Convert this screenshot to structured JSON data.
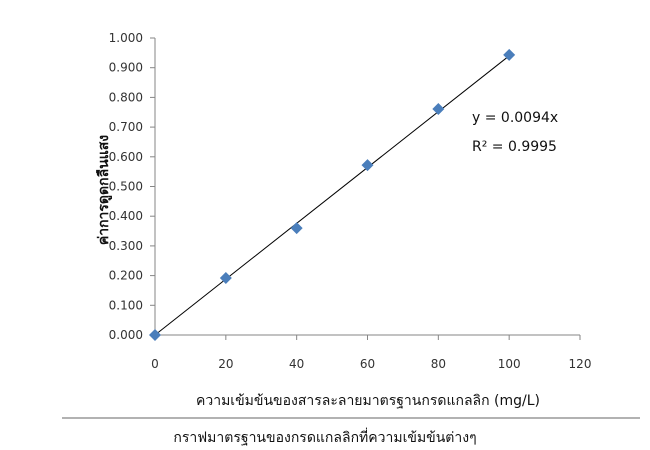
{
  "chart_data": {
    "type": "scatter",
    "title": "",
    "xlabel": "ความเข้มข้นของสารละลายมาตรฐานกรดแกลลิก (mg/L)",
    "ylabel": "ค่าการดูดกลืนแสง",
    "xlim": [
      0,
      120
    ],
    "ylim": [
      0,
      1.0
    ],
    "x_ticks": [
      "0",
      "20",
      "40",
      "60",
      "80",
      "100",
      "120"
    ],
    "y_ticks": [
      "0.000",
      "0.100",
      "0.200",
      "0.300",
      "0.400",
      "0.500",
      "0.600",
      "0.700",
      "0.800",
      "0.900",
      "1.000"
    ],
    "grid": false,
    "series": [
      {
        "x": [
          0,
          20,
          40,
          60,
          80,
          100
        ],
        "y": [
          0.0,
          0.192,
          0.36,
          0.572,
          0.761,
          0.943
        ],
        "marker": "diamond",
        "color": "#4a7ebb"
      }
    ],
    "trendline": {
      "slope": 0.0094,
      "intercept": 0,
      "color": "#000000"
    },
    "annotations": {
      "equation": "y = 0.0094x",
      "r_squared": "R² = 0.9995"
    }
  },
  "caption": "กราฟมาตรฐานของกรดแกลลิกที่ความเข้มข้นต่างๆ"
}
